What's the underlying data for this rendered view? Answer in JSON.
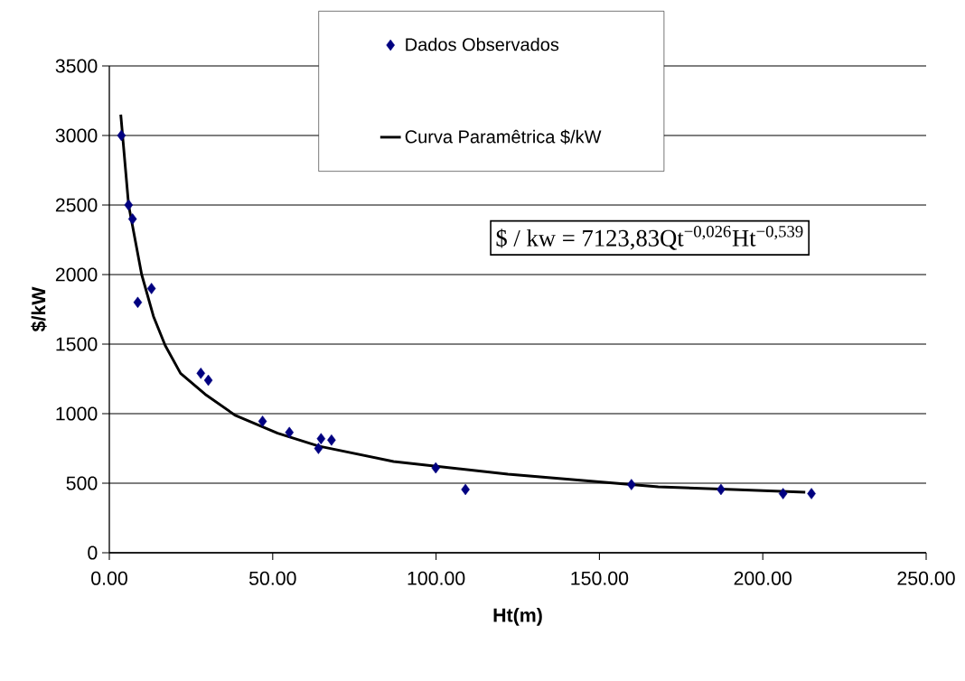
{
  "chart_data": {
    "type": "scatter",
    "xlabel": "Ht(m)",
    "ylabel": "$/kW",
    "xlim": [
      0,
      250
    ],
    "ylim": [
      0,
      3500
    ],
    "xticks": [
      {
        "value": 0,
        "label": "0.00"
      },
      {
        "value": 50,
        "label": "50.00"
      },
      {
        "value": 100,
        "label": "100.00"
      },
      {
        "value": 150,
        "label": "150.00"
      },
      {
        "value": 200,
        "label": "200.00"
      },
      {
        "value": 250,
        "label": "250.00"
      }
    ],
    "yticks": [
      0,
      500,
      1000,
      1500,
      2000,
      2500,
      3000,
      3500
    ],
    "grid": "y",
    "legend": "top right",
    "series": [
      {
        "name": "Dados Observados",
        "color": "#000080",
        "marker": "diamond",
        "x": [
          3.7,
          5.9,
          7.1,
          8.7,
          12.9,
          28,
          30.3,
          46.9,
          55.1,
          64,
          64.8,
          68,
          99.9,
          109,
          159.8,
          187.2,
          206.2,
          214.9
        ],
        "values": [
          3000,
          2500,
          2400,
          1800,
          1900,
          1290,
          1240,
          945,
          865,
          750,
          820,
          810,
          610,
          455,
          490,
          455,
          425,
          425
        ]
      },
      {
        "name": "Curva Paramêtrica $/kW",
        "type": "line",
        "color": "#000000",
        "marker": "none",
        "line_style": "solid",
        "x": [
          3.5,
          5.9,
          7.1,
          9.9,
          13.5,
          17.1,
          21.8,
          29.3,
          38.4,
          51.5,
          64,
          87,
          122,
          145,
          168,
          191,
          213
        ],
        "values": [
          3150,
          2500,
          2350,
          2000,
          1700,
          1490,
          1290,
          1140,
          990,
          860,
          767,
          656,
          565,
          519,
          474,
          455,
          435
        ]
      }
    ],
    "annotations": [
      "$ / kw = 7123,83Qt$^{−0,026}$Ht$^{−0,539}$"
    ]
  }
}
